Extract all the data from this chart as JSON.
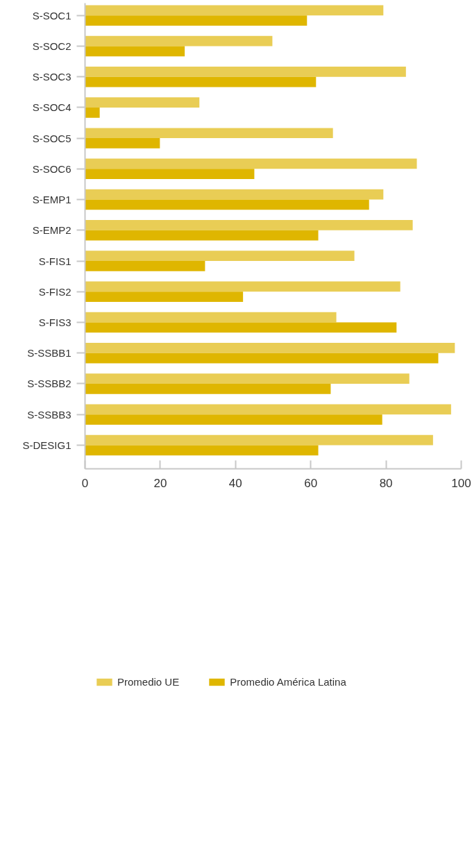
{
  "chart_data": {
    "type": "bar",
    "orientation": "horizontal",
    "categories": [
      "S-SOC1",
      "S-SOC2",
      "S-SOC3",
      "S-SOC4",
      "S-SOC5",
      "S-SOC6",
      "S-EMP1",
      "S-EMP2",
      "S-FIS1",
      "S-FIS2",
      "S-FIS3",
      "S-SSBB1",
      "S-SSBB2",
      "S-SSBB3",
      "S-DESIG1"
    ],
    "series": [
      {
        "name": "Promedio UE",
        "color": "#e9cd55",
        "values": [
          79.3,
          49.8,
          85.3,
          30.4,
          65.9,
          88.2,
          79.3,
          87.1,
          71.6,
          83.8,
          66.8,
          98.3,
          86.2,
          97.3,
          92.5
        ]
      },
      {
        "name": "Promedio América Latina",
        "color": "#dfb600",
        "values": [
          59.0,
          26.5,
          61.4,
          3.9,
          19.9,
          45.0,
          75.5,
          62.0,
          31.9,
          42.0,
          82.8,
          93.9,
          65.3,
          79.0,
          62.0
        ]
      }
    ],
    "xlim": [
      0,
      100
    ],
    "xticks": [
      0,
      20,
      40,
      60,
      80,
      100
    ],
    "legend": "bottom"
  }
}
